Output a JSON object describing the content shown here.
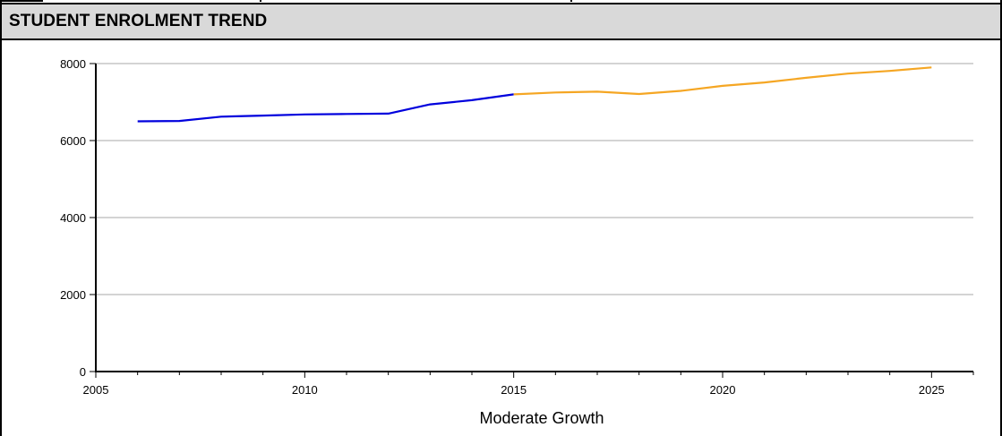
{
  "header": {
    "title": "STUDENT ENROLMENT TREND"
  },
  "chart_data": {
    "type": "line",
    "title": "",
    "xlabel": "Moderate Growth",
    "ylabel": "",
    "xlim": [
      2005,
      2026
    ],
    "ylim": [
      0,
      8000
    ],
    "x_ticks": [
      2005,
      2010,
      2015,
      2020,
      2025
    ],
    "y_ticks": [
      0,
      2000,
      4000,
      6000,
      8000
    ],
    "grid": "horizontal",
    "legend": "none",
    "series": [
      {
        "color": "#0000dd",
        "x": [
          2006,
          2007,
          2008,
          2009,
          2010,
          2011,
          2012,
          2013,
          2014,
          2015
        ],
        "values": [
          6500,
          6510,
          6620,
          6650,
          6680,
          6690,
          6700,
          6940,
          7050,
          7200
        ]
      },
      {
        "color": "#f5a623",
        "x": [
          2015,
          2016,
          2017,
          2018,
          2019,
          2020,
          2021,
          2022,
          2023,
          2024,
          2025
        ],
        "values": [
          7200,
          7250,
          7270,
          7210,
          7290,
          7420,
          7510,
          7630,
          7740,
          7810,
          7900
        ]
      }
    ]
  }
}
